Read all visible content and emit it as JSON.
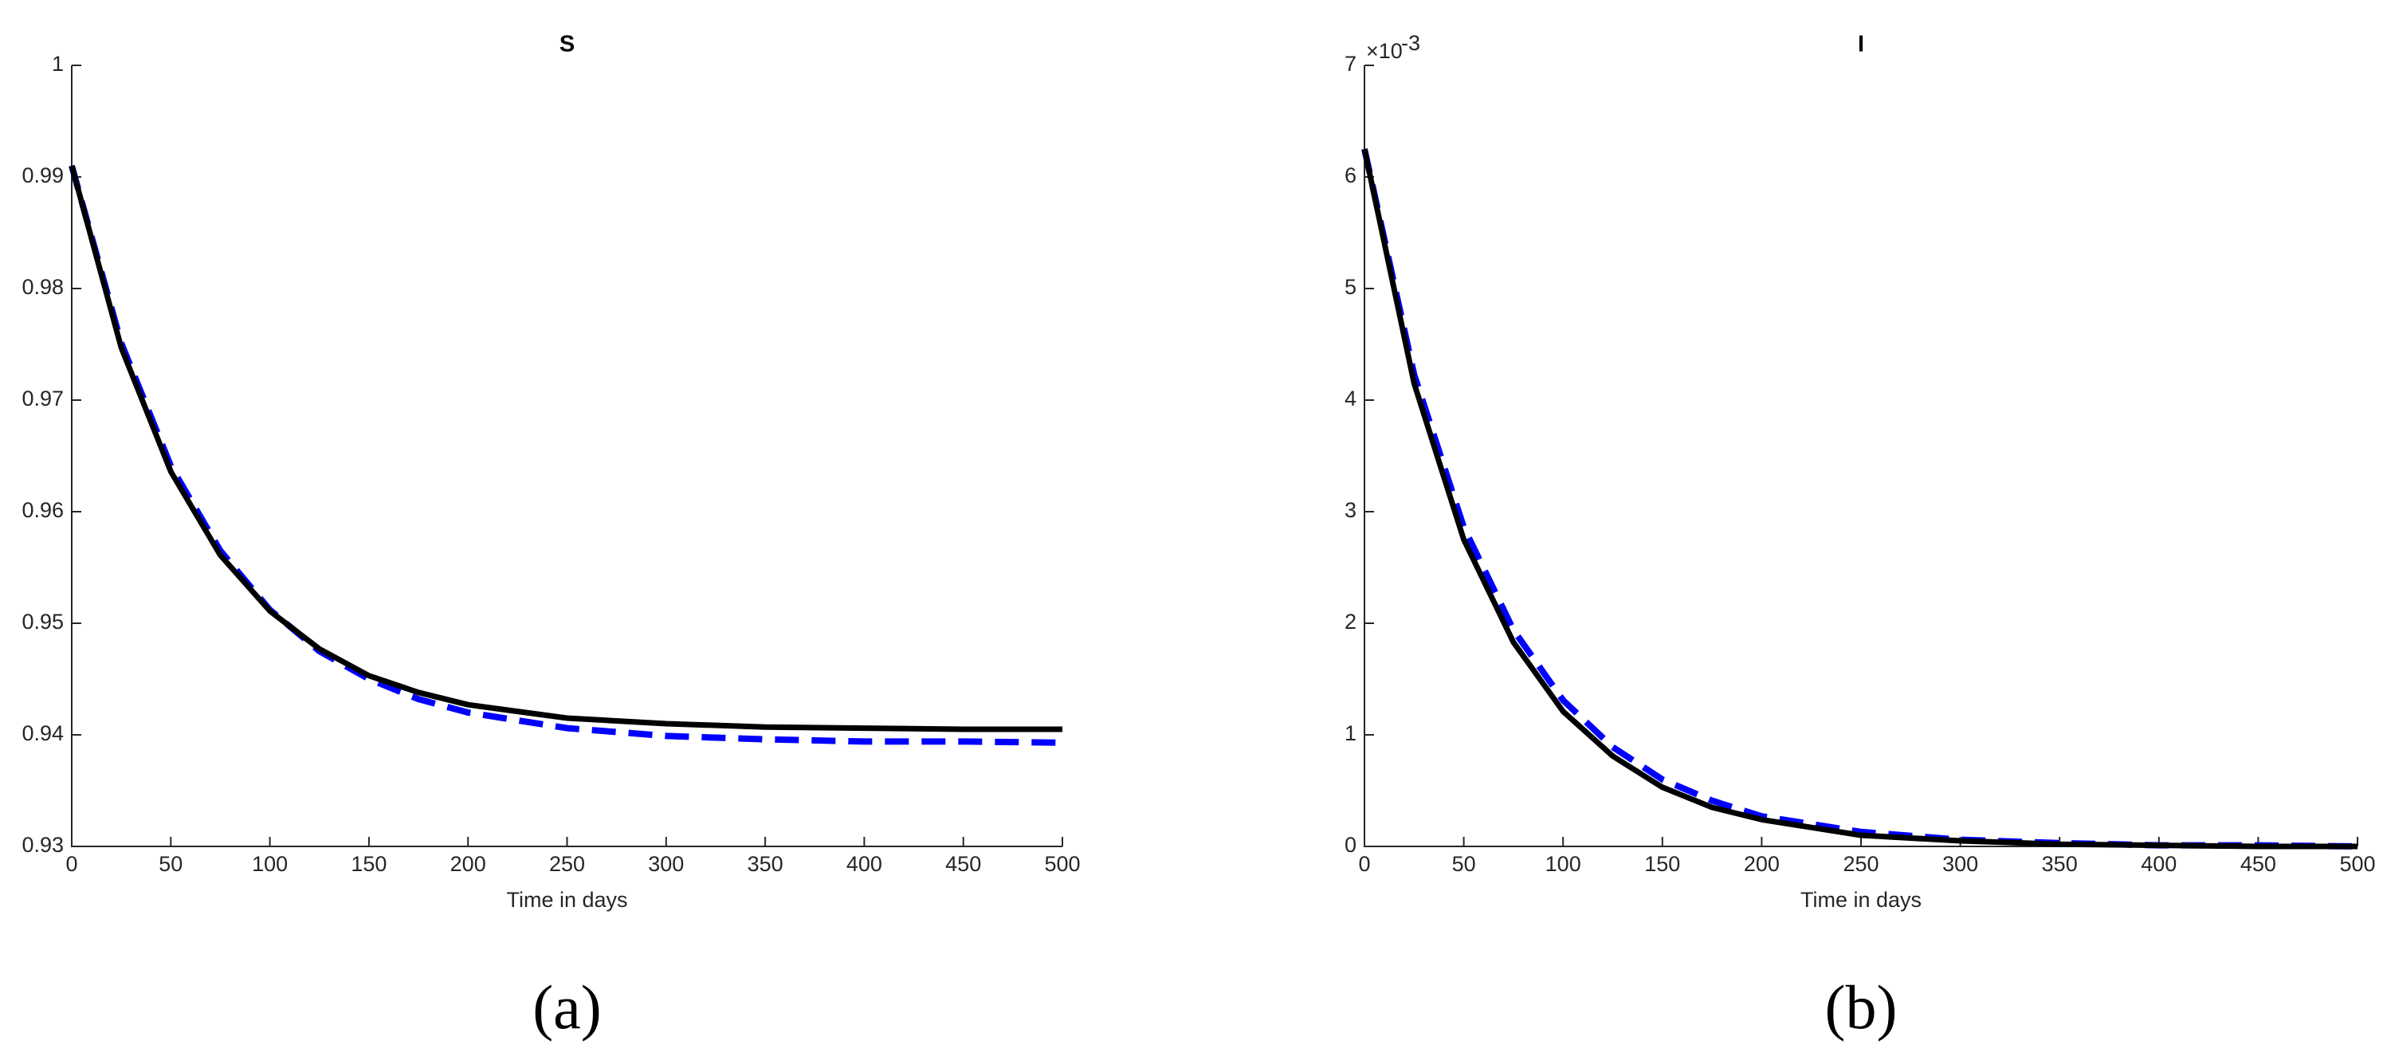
{
  "chart_data": [
    {
      "type": "line",
      "title": "S",
      "xlabel": "Time in days",
      "caption": "(a)",
      "x": [
        0,
        25,
        50,
        75,
        100,
        125,
        150,
        175,
        200,
        250,
        300,
        350,
        400,
        450,
        500
      ],
      "series": [
        {
          "color": "#0000ff",
          "style": "dashed",
          "values": [
            0.991,
            0.9751,
            0.9641,
            0.9565,
            0.9512,
            0.9475,
            0.945,
            0.9432,
            0.942,
            0.9406,
            0.9399,
            0.9396,
            0.9394,
            0.9394,
            0.9393
          ]
        },
        {
          "color": "#000000",
          "style": "solid",
          "values": [
            0.991,
            0.9747,
            0.9636,
            0.9561,
            0.9511,
            0.9477,
            0.9453,
            0.9438,
            0.9427,
            0.9415,
            0.941,
            0.9407,
            0.9406,
            0.9405,
            0.9405
          ]
        }
      ],
      "xlim": [
        0,
        500
      ],
      "xticks": [
        0,
        50,
        100,
        150,
        200,
        250,
        300,
        350,
        400,
        450,
        500
      ],
      "ylim": [
        0.93,
        1
      ],
      "yticks": [
        0.93,
        0.94,
        0.95,
        0.96,
        0.97,
        0.98,
        0.99,
        1
      ]
    },
    {
      "type": "line",
      "title": "I",
      "xlabel": "Time in days",
      "caption": "(b)",
      "y_multiplier": {
        "base": "×10",
        "exponent": "-3"
      },
      "x": [
        0,
        25,
        50,
        75,
        100,
        125,
        150,
        175,
        200,
        250,
        300,
        350,
        400,
        450,
        500
      ],
      "series": [
        {
          "color": "#0000ff",
          "style": "dashed",
          "values": [
            6.25,
            4.23,
            2.86,
            1.94,
            1.31,
            0.89,
            0.6,
            0.41,
            0.27,
            0.13,
            0.06,
            0.03,
            0.01,
            0.01,
            0
          ]
        },
        {
          "color": "#000000",
          "style": "solid",
          "values": [
            6.25,
            4.15,
            2.75,
            1.83,
            1.21,
            0.81,
            0.53,
            0.35,
            0.24,
            0.1,
            0.05,
            0.02,
            0.01,
            0,
            0
          ]
        }
      ],
      "xlim": [
        0,
        500
      ],
      "xticks": [
        0,
        50,
        100,
        150,
        200,
        250,
        300,
        350,
        400,
        450,
        500
      ],
      "ylim": [
        0,
        7
      ],
      "yticks": [
        0,
        1,
        2,
        3,
        4,
        5,
        6,
        7
      ]
    }
  ]
}
